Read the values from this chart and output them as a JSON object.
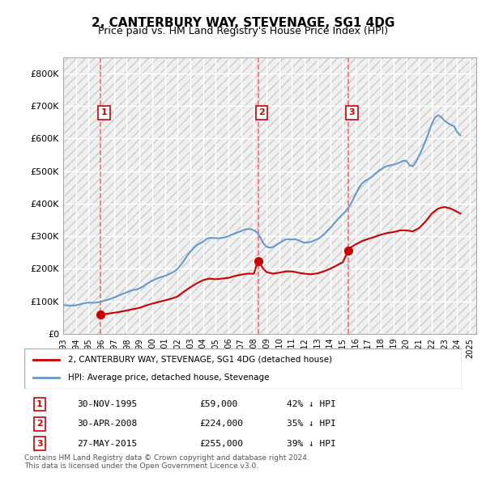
{
  "title": "2, CANTERBURY WAY, STEVENAGE, SG1 4DG",
  "subtitle": "Price paid vs. HM Land Registry's House Price Index (HPI)",
  "ylabel": "",
  "ylim": [
    0,
    850000
  ],
  "yticks": [
    0,
    100000,
    200000,
    300000,
    400000,
    500000,
    600000,
    700000,
    800000
  ],
  "ytick_labels": [
    "£0",
    "£100K",
    "£200K",
    "£300K",
    "£400K",
    "£500K",
    "£600K",
    "£700K",
    "£800K"
  ],
  "background_color": "#ffffff",
  "plot_bg_color": "#f0f0f0",
  "hatch_color": "#d8d8d8",
  "grid_color": "#ffffff",
  "sale_dates": [
    1995.92,
    2008.33,
    2015.41
  ],
  "sale_prices": [
    59000,
    224000,
    255000
  ],
  "sale_labels": [
    "1",
    "2",
    "3"
  ],
  "legend_label_red": "2, CANTERBURY WAY, STEVENAGE, SG1 4DG (detached house)",
  "legend_label_blue": "HPI: Average price, detached house, Stevenage",
  "table_rows": [
    [
      "1",
      "30-NOV-1995",
      "£59,000",
      "42% ↓ HPI"
    ],
    [
      "2",
      "30-APR-2008",
      "£224,000",
      "35% ↓ HPI"
    ],
    [
      "3",
      "27-MAY-2015",
      "£255,000",
      "39% ↓ HPI"
    ]
  ],
  "footer": "Contains HM Land Registry data © Crown copyright and database right 2024.\nThis data is licensed under the Open Government Licence v3.0.",
  "red_line_color": "#cc0000",
  "blue_line_color": "#6699cc",
  "marker_color": "#cc0000",
  "vline_color": "#ff6666",
  "hpi_data": {
    "years": [
      1993.0,
      1993.25,
      1993.5,
      1993.75,
      1994.0,
      1994.25,
      1994.5,
      1994.75,
      1995.0,
      1995.25,
      1995.5,
      1995.75,
      1996.0,
      1996.25,
      1996.5,
      1996.75,
      1997.0,
      1997.25,
      1997.5,
      1997.75,
      1998.0,
      1998.25,
      1998.5,
      1998.75,
      1999.0,
      1999.25,
      1999.5,
      1999.75,
      2000.0,
      2000.25,
      2000.5,
      2000.75,
      2001.0,
      2001.25,
      2001.5,
      2001.75,
      2002.0,
      2002.25,
      2002.5,
      2002.75,
      2003.0,
      2003.25,
      2003.5,
      2003.75,
      2004.0,
      2004.25,
      2004.5,
      2004.75,
      2005.0,
      2005.25,
      2005.5,
      2005.75,
      2006.0,
      2006.25,
      2006.5,
      2006.75,
      2007.0,
      2007.25,
      2007.5,
      2007.75,
      2008.0,
      2008.25,
      2008.5,
      2008.75,
      2009.0,
      2009.25,
      2009.5,
      2009.75,
      2010.0,
      2010.25,
      2010.5,
      2010.75,
      2011.0,
      2011.25,
      2011.5,
      2011.75,
      2012.0,
      2012.25,
      2012.5,
      2012.75,
      2013.0,
      2013.25,
      2013.5,
      2013.75,
      2014.0,
      2014.25,
      2014.5,
      2014.75,
      2015.0,
      2015.25,
      2015.5,
      2015.75,
      2016.0,
      2016.25,
      2016.5,
      2016.75,
      2017.0,
      2017.25,
      2017.5,
      2017.75,
      2018.0,
      2018.25,
      2018.5,
      2018.75,
      2019.0,
      2019.25,
      2019.5,
      2019.75,
      2020.0,
      2020.25,
      2020.5,
      2020.75,
      2021.0,
      2021.25,
      2021.5,
      2021.75,
      2022.0,
      2022.25,
      2022.5,
      2022.75,
      2023.0,
      2023.25,
      2023.5,
      2023.75,
      2024.0,
      2024.25
    ],
    "values": [
      88000,
      88000,
      87000,
      87000,
      88000,
      90000,
      93000,
      95000,
      96000,
      96000,
      96000,
      97000,
      99000,
      102000,
      105000,
      108000,
      112000,
      116000,
      120000,
      124000,
      128000,
      132000,
      135000,
      136000,
      140000,
      145000,
      152000,
      158000,
      163000,
      168000,
      172000,
      175000,
      178000,
      182000,
      187000,
      192000,
      200000,
      212000,
      225000,
      240000,
      252000,
      263000,
      272000,
      278000,
      283000,
      291000,
      295000,
      295000,
      294000,
      294000,
      295000,
      297000,
      300000,
      305000,
      308000,
      312000,
      316000,
      320000,
      322000,
      322000,
      318000,
      312000,
      297000,
      278000,
      268000,
      265000,
      267000,
      273000,
      279000,
      285000,
      290000,
      291000,
      290000,
      291000,
      288000,
      283000,
      280000,
      281000,
      283000,
      287000,
      291000,
      297000,
      305000,
      315000,
      325000,
      336000,
      348000,
      358000,
      368000,
      378000,
      392000,
      408000,
      428000,
      448000,
      462000,
      470000,
      475000,
      482000,
      490000,
      498000,
      505000,
      512000,
      516000,
      518000,
      520000,
      523000,
      527000,
      532000,
      532000,
      518000,
      515000,
      528000,
      548000,
      568000,
      592000,
      618000,
      645000,
      665000,
      672000,
      666000,
      655000,
      648000,
      642000,
      638000,
      620000,
      610000
    ]
  },
  "red_line_data": {
    "years": [
      1995.92,
      1996.0,
      1996.5,
      1997.0,
      1997.5,
      1998.0,
      1998.5,
      1999.0,
      1999.5,
      2000.0,
      2000.5,
      2001.0,
      2001.5,
      2002.0,
      2002.5,
      2003.0,
      2003.5,
      2004.0,
      2004.5,
      2005.0,
      2005.5,
      2006.0,
      2006.5,
      2007.0,
      2007.5,
      2008.0,
      2008.33,
      2008.5,
      2008.75,
      2009.0,
      2009.5,
      2010.0,
      2010.5,
      2011.0,
      2011.5,
      2012.0,
      2012.5,
      2013.0,
      2013.5,
      2014.0,
      2014.5,
      2015.0,
      2015.41,
      2015.5,
      2016.0,
      2016.5,
      2017.0,
      2017.5,
      2018.0,
      2018.5,
      2019.0,
      2019.5,
      2020.0,
      2020.5,
      2021.0,
      2021.5,
      2022.0,
      2022.5,
      2023.0,
      2023.5,
      2024.0,
      2024.25
    ],
    "values": [
      59000,
      60000,
      62000,
      65000,
      68000,
      72000,
      76000,
      80000,
      87000,
      93000,
      98000,
      103000,
      108000,
      115000,
      130000,
      143000,
      155000,
      165000,
      170000,
      168000,
      170000,
      172000,
      178000,
      182000,
      185000,
      185000,
      224000,
      215000,
      200000,
      190000,
      185000,
      188000,
      192000,
      192000,
      188000,
      185000,
      183000,
      186000,
      192000,
      200000,
      210000,
      220000,
      255000,
      262000,
      275000,
      285000,
      292000,
      298000,
      305000,
      310000,
      313000,
      318000,
      318000,
      315000,
      325000,
      345000,
      370000,
      385000,
      390000,
      385000,
      375000,
      370000
    ]
  },
  "xlim": [
    1993.0,
    2025.5
  ],
  "xticks": [
    1993,
    1994,
    1995,
    1996,
    1997,
    1998,
    1999,
    2000,
    2001,
    2002,
    2003,
    2004,
    2005,
    2006,
    2007,
    2008,
    2009,
    2010,
    2011,
    2012,
    2013,
    2014,
    2015,
    2016,
    2017,
    2018,
    2019,
    2020,
    2021,
    2022,
    2023,
    2024,
    2025
  ]
}
